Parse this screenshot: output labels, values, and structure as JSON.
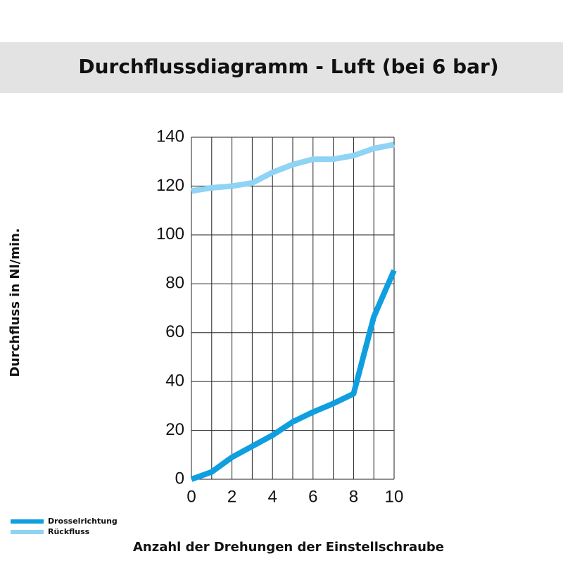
{
  "chart_data": {
    "type": "line",
    "title": "Durchflussdiagramm - Luft (bei 6 bar)",
    "x_label": "Anzahl der Drehungen der Einstellschraube",
    "y_label": "Durchfluss in Nl/min.",
    "x": [
      0,
      1,
      2,
      3,
      4,
      5,
      6,
      7,
      8,
      9,
      10
    ],
    "series": [
      {
        "name": "Drosselrichtung",
        "color": "#0f9fe0",
        "values": [
          0,
          3,
          9,
          13.5,
          18,
          23.5,
          27.5,
          31,
          35,
          66.5,
          85.5
        ]
      },
      {
        "name": "Rückfluss",
        "color": "#8fd3f5",
        "values": [
          118,
          119.3,
          120,
          121.3,
          125.6,
          128.8,
          131,
          131,
          132.5,
          135.4,
          137
        ]
      }
    ],
    "xlim": [
      0,
      10
    ],
    "xticks": [
      0,
      2,
      4,
      6,
      8,
      10
    ],
    "xminorticks": [
      1,
      3,
      5,
      7,
      9
    ],
    "ylim": [
      0,
      140
    ],
    "yticks": [
      0,
      20,
      40,
      60,
      80,
      100,
      120,
      140
    ],
    "grid": true,
    "legend": "bottom-left"
  }
}
